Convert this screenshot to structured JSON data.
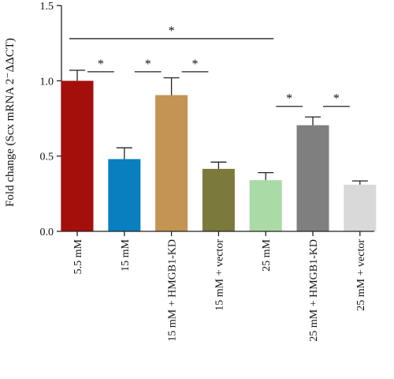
{
  "chart_data": {
    "type": "bar",
    "ylabel": "Fold change (Scx mRNA 2⁻ΔΔCT)",
    "ylim": [
      0,
      1.5
    ],
    "yticks": [
      "0.0",
      "0.5",
      "1.0",
      "1.5"
    ],
    "categories": [
      "5.5 mM",
      "15 mM",
      "15 mM + HMGB1-KD",
      "15 mM + vector",
      "25 mM",
      "25 mM + HMGB1-KD",
      "25 mM + vector"
    ],
    "values": [
      1.0,
      0.48,
      0.905,
      0.415,
      0.34,
      0.705,
      0.31
    ],
    "errors": [
      0.07,
      0.075,
      0.115,
      0.045,
      0.05,
      0.055,
      0.025
    ],
    "colors": [
      "#a50f0b",
      "#0a7fc0",
      "#c49453",
      "#7b7a3c",
      "#aadaa6",
      "#7f7f7f",
      "#d9d9d9"
    ],
    "significance": [
      {
        "from": 0,
        "to": 1,
        "level": 1.06,
        "label": "*"
      },
      {
        "from": 1,
        "to": 2,
        "level": 1.06,
        "label": "*"
      },
      {
        "from": 2,
        "to": 3,
        "level": 1.06,
        "label": "*"
      },
      {
        "from": 0,
        "to": 4,
        "level": 1.28,
        "label": "*"
      },
      {
        "from": 4,
        "to": 5,
        "level": 0.83,
        "label": "*"
      },
      {
        "from": 5,
        "to": 6,
        "level": 0.83,
        "label": "*"
      }
    ]
  }
}
